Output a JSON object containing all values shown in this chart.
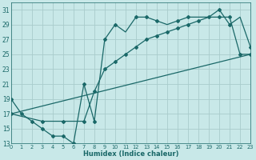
{
  "xlabel": "Humidex (Indice chaleur)",
  "bg_color": "#c8e8e8",
  "grid_color": "#a8cccc",
  "line_color": "#1a6868",
  "xlim": [
    0,
    23
  ],
  "ylim": [
    13,
    32
  ],
  "xticks": [
    0,
    1,
    2,
    3,
    4,
    5,
    6,
    7,
    8,
    9,
    10,
    11,
    12,
    13,
    14,
    15,
    16,
    17,
    18,
    19,
    20,
    21,
    22,
    23
  ],
  "yticks": [
    13,
    15,
    17,
    19,
    21,
    23,
    25,
    27,
    29,
    31
  ],
  "line1_x": [
    0,
    1,
    2,
    3,
    4,
    5,
    6,
    7,
    8,
    9,
    10,
    11,
    12,
    13,
    14,
    15,
    16,
    17,
    18,
    19,
    20,
    21,
    22,
    23
  ],
  "line1_y": [
    19,
    17,
    16,
    15,
    14,
    14,
    13,
    21,
    16,
    27,
    29,
    28,
    30,
    30,
    29.5,
    29,
    29.5,
    30,
    30,
    30,
    31,
    29,
    30,
    26
  ],
  "line1_has_marker": [
    true,
    true,
    true,
    true,
    true,
    true,
    true,
    true,
    true,
    true,
    true,
    false,
    true,
    true,
    true,
    false,
    true,
    true,
    false,
    false,
    true,
    true,
    false,
    true
  ],
  "line2_x": [
    0,
    3,
    5,
    7,
    8,
    9,
    10,
    11,
    12,
    13,
    14,
    15,
    16,
    17,
    18,
    19,
    20,
    21,
    22,
    23
  ],
  "line2_y": [
    17,
    16,
    16,
    16,
    20,
    23,
    24,
    25,
    26,
    27,
    27.5,
    28,
    28.5,
    29,
    29.5,
    30,
    30,
    30,
    25,
    25
  ],
  "line3_x": [
    0,
    23
  ],
  "line3_y": [
    17,
    25
  ]
}
